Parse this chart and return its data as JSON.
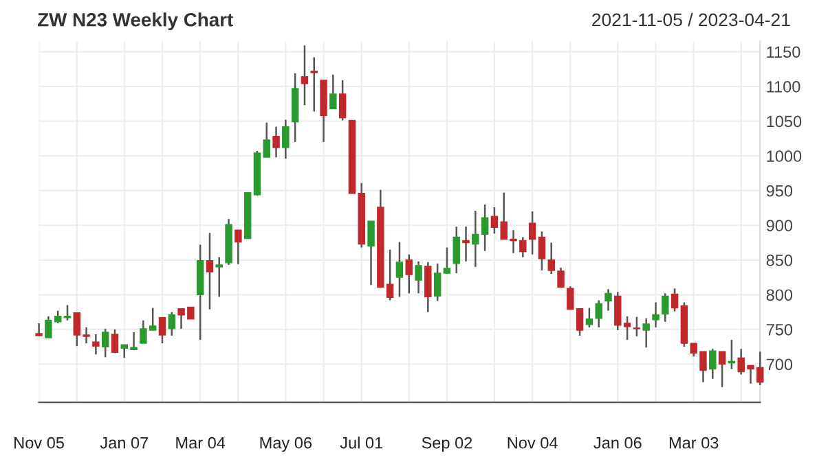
{
  "chart_data": {
    "type": "candlestick",
    "title": "ZW N23 Weekly Chart",
    "subtitle": "2021-11-05 / 2023-04-21",
    "x": [
      "2021-11-05",
      "2021-11-12",
      "2021-11-19",
      "2021-11-26",
      "2021-12-03",
      "2021-12-10",
      "2021-12-17",
      "2021-12-24",
      "2021-12-31",
      "2022-01-07",
      "2022-01-14",
      "2022-01-21",
      "2022-01-28",
      "2022-02-04",
      "2022-02-11",
      "2022-02-18",
      "2022-02-25",
      "2022-03-04",
      "2022-03-11",
      "2022-03-18",
      "2022-03-25",
      "2022-04-01",
      "2022-04-08",
      "2022-04-15",
      "2022-04-22",
      "2022-04-29",
      "2022-05-06",
      "2022-05-13",
      "2022-05-20",
      "2022-05-27",
      "2022-06-03",
      "2022-06-10",
      "2022-06-17",
      "2022-06-24",
      "2022-07-01",
      "2022-07-08",
      "2022-07-15",
      "2022-07-22",
      "2022-07-29",
      "2022-08-05",
      "2022-08-12",
      "2022-08-19",
      "2022-08-26",
      "2022-09-02",
      "2022-09-09",
      "2022-09-16",
      "2022-09-23",
      "2022-09-30",
      "2022-10-07",
      "2022-10-14",
      "2022-10-21",
      "2022-10-28",
      "2022-11-04",
      "2022-11-11",
      "2022-11-18",
      "2022-11-25",
      "2022-12-02",
      "2022-12-09",
      "2022-12-16",
      "2022-12-23",
      "2022-12-30",
      "2023-01-06",
      "2023-01-13",
      "2023-01-20",
      "2023-01-27",
      "2023-02-03",
      "2023-02-10",
      "2023-02-17",
      "2023-02-24",
      "2023-03-03",
      "2023-03-10",
      "2023-03-17",
      "2023-03-24",
      "2023-03-31",
      "2023-04-07",
      "2023-04-14",
      "2023-04-21"
    ],
    "ohlc": [
      [
        744,
        759,
        740,
        741
      ],
      [
        738,
        769,
        738,
        763
      ],
      [
        761,
        777,
        759,
        769
      ],
      [
        767,
        785,
        763,
        769
      ],
      [
        774,
        774,
        726,
        742
      ],
      [
        742,
        753,
        730,
        740
      ],
      [
        732,
        743,
        714,
        726
      ],
      [
        725,
        751,
        710,
        746
      ],
      [
        743,
        750,
        716,
        717
      ],
      [
        723,
        728,
        709,
        728
      ],
      [
        721,
        746,
        720,
        724
      ],
      [
        730,
        763,
        730,
        751
      ],
      [
        749,
        781,
        749,
        755
      ],
      [
        767,
        767,
        730,
        742
      ],
      [
        751,
        775,
        741,
        771
      ],
      [
        780,
        780,
        751,
        771
      ],
      [
        782,
        782,
        765,
        765
      ],
      [
        800,
        872,
        735,
        849
      ],
      [
        849,
        889,
        779,
        833
      ],
      [
        840,
        854,
        797,
        843
      ],
      [
        846,
        909,
        843,
        901
      ],
      [
        893,
        893,
        844,
        876
      ],
      [
        881,
        947,
        881,
        947
      ],
      [
        944,
        1007,
        943,
        1004
      ],
      [
        998,
        1048,
        998,
        1023
      ],
      [
        1028,
        1042,
        998,
        1012
      ],
      [
        1012,
        1052,
        996,
        1042
      ],
      [
        1049,
        1119,
        1020,
        1097
      ],
      [
        1114,
        1159,
        1073,
        1104
      ],
      [
        1122,
        1142,
        1064,
        1120
      ],
      [
        1109,
        1109,
        1020,
        1058
      ],
      [
        1068,
        1117,
        1068,
        1089
      ],
      [
        1089,
        1109,
        1051,
        1055
      ],
      [
        1051,
        1051,
        946,
        946
      ],
      [
        946,
        961,
        868,
        873
      ],
      [
        870,
        906,
        814,
        906
      ],
      [
        926,
        951,
        810,
        811
      ],
      [
        815,
        865,
        792,
        796
      ],
      [
        825,
        876,
        797,
        847
      ],
      [
        850,
        858,
        802,
        829
      ],
      [
        821,
        848,
        802,
        842
      ],
      [
        841,
        847,
        775,
        797
      ],
      [
        798,
        845,
        791,
        831
      ],
      [
        831,
        868,
        830,
        838
      ],
      [
        845,
        898,
        831,
        883
      ],
      [
        878,
        898,
        848,
        875
      ],
      [
        873,
        921,
        840,
        887
      ],
      [
        887,
        930,
        863,
        911
      ],
      [
        913,
        926,
        888,
        897
      ],
      [
        905,
        947,
        880,
        880
      ],
      [
        880,
        893,
        860,
        878
      ],
      [
        878,
        883,
        854,
        862
      ],
      [
        903,
        920,
        858,
        880
      ],
      [
        883,
        891,
        835,
        852
      ],
      [
        850,
        875,
        830,
        835
      ],
      [
        834,
        839,
        811,
        811
      ],
      [
        809,
        812,
        779,
        779
      ],
      [
        780,
        780,
        741,
        749
      ],
      [
        757,
        781,
        753,
        765
      ],
      [
        766,
        792,
        753,
        787
      ],
      [
        791,
        808,
        777,
        802
      ],
      [
        798,
        804,
        749,
        756
      ],
      [
        759,
        769,
        735,
        754
      ],
      [
        752,
        768,
        740,
        751
      ],
      [
        749,
        766,
        724,
        758
      ],
      [
        764,
        789,
        753,
        771
      ],
      [
        772,
        802,
        761,
        798
      ],
      [
        801,
        809,
        776,
        781
      ],
      [
        784,
        789,
        725,
        730
      ],
      [
        730,
        730,
        711,
        716
      ],
      [
        718,
        718,
        674,
        691
      ],
      [
        693,
        722,
        679,
        719
      ],
      [
        718,
        718,
        667,
        700
      ],
      [
        702,
        735,
        693,
        704
      ],
      [
        709,
        722,
        685,
        689
      ],
      [
        698,
        698,
        672,
        693
      ],
      [
        695,
        718,
        670,
        674
      ]
    ],
    "xlim": [
      "2021-11-05",
      "2023-04-21"
    ],
    "xticks": [
      {
        "value": "2021-11-05",
        "label": "Nov 05"
      },
      {
        "value": "2021-12-03",
        "label": null
      },
      {
        "value": "2022-01-07",
        "label": "Jan 07"
      },
      {
        "value": "2022-02-04",
        "label": null
      },
      {
        "value": "2022-03-04",
        "label": "Mar 04"
      },
      {
        "value": "2022-04-01",
        "label": null
      },
      {
        "value": "2022-05-06",
        "label": "May 06"
      },
      {
        "value": "2022-06-03",
        "label": null
      },
      {
        "value": "2022-07-01",
        "label": "Jul 01"
      },
      {
        "value": "2022-08-05",
        "label": null
      },
      {
        "value": "2022-09-02",
        "label": "Sep 02"
      },
      {
        "value": "2022-10-07",
        "label": null
      },
      {
        "value": "2022-11-04",
        "label": "Nov 04"
      },
      {
        "value": "2022-12-02",
        "label": null
      },
      {
        "value": "2023-01-06",
        "label": "Jan 06"
      },
      {
        "value": "2023-02-03",
        "label": null
      },
      {
        "value": "2023-03-03",
        "label": "Mar 03"
      },
      {
        "value": "2023-04-07",
        "label": null
      },
      {
        "value": "2023-04-21",
        "label": null
      }
    ],
    "ylim": [
      645,
      1165
    ],
    "yticks": [
      700,
      750,
      800,
      850,
      900,
      950,
      1000,
      1050,
      1100,
      1150
    ],
    "grid": true
  }
}
